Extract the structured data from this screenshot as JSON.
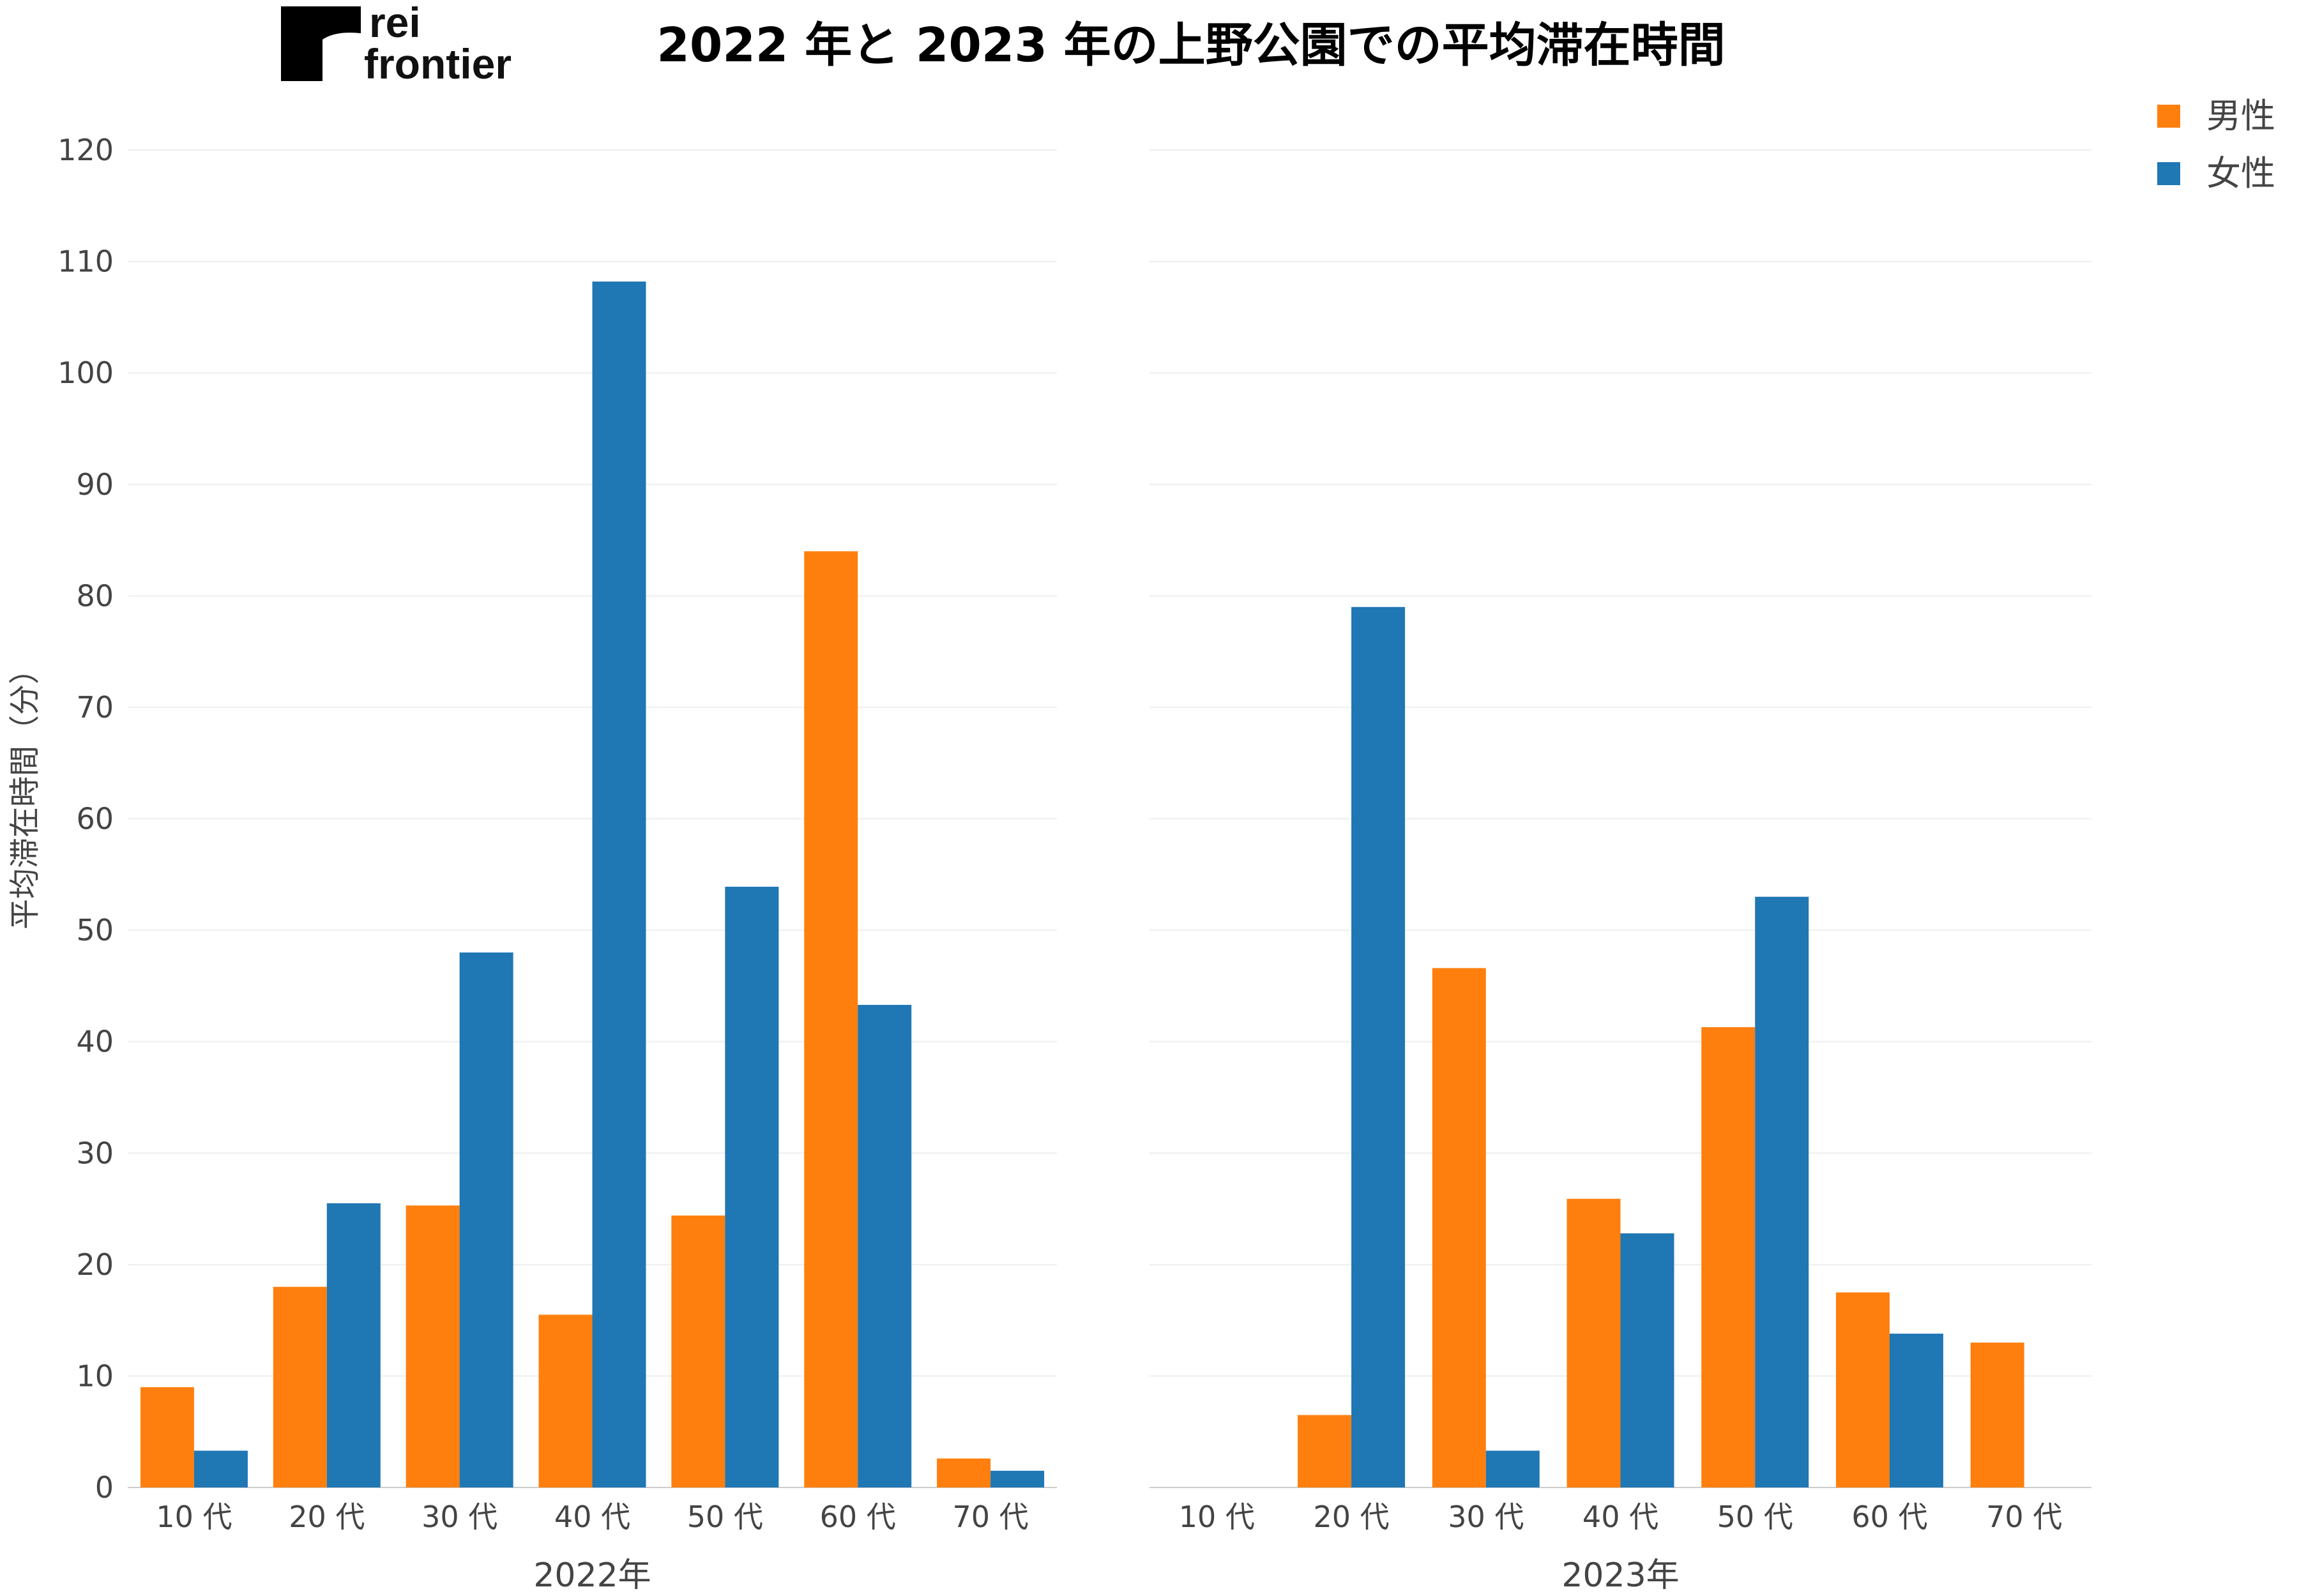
{
  "logo": {
    "line1": "rei",
    "line2": "frontier"
  },
  "chart_data": {
    "type": "bar",
    "title": "2022 年と 2023 年の上野公園での平均滞在時間",
    "ylabel": "平均滞在時間（分）",
    "ylim": [
      0,
      120
    ],
    "yticks": [
      0,
      10,
      20,
      30,
      40,
      50,
      60,
      70,
      80,
      90,
      100,
      110,
      120
    ],
    "grid": true,
    "legend": {
      "placement": "top-right",
      "entries": [
        "男性",
        "女性"
      ]
    },
    "colors": {
      "男性": "#ff7f0e",
      "女性": "#1f77b4"
    },
    "panels": [
      {
        "xlabel": "2022年",
        "categories": [
          "10 代",
          "20 代",
          "30 代",
          "40 代",
          "50 代",
          "60 代",
          "70 代"
        ],
        "series": [
          {
            "name": "男性",
            "values": [
              9.0,
              18.0,
              25.3,
              15.5,
              24.4,
              84.0,
              2.6
            ]
          },
          {
            "name": "女性",
            "values": [
              3.3,
              25.5,
              48.0,
              108.2,
              53.9,
              43.3,
              1.5
            ]
          }
        ]
      },
      {
        "xlabel": "2023年",
        "categories": [
          "10 代",
          "20 代",
          "30 代",
          "40 代",
          "50 代",
          "60 代",
          "70 代"
        ],
        "series": [
          {
            "name": "男性",
            "values": [
              null,
              6.5,
              46.6,
              25.9,
              41.3,
              17.5,
              13.0
            ]
          },
          {
            "name": "女性",
            "values": [
              null,
              79.0,
              3.3,
              22.8,
              53.0,
              13.8,
              null
            ]
          }
        ]
      }
    ]
  }
}
